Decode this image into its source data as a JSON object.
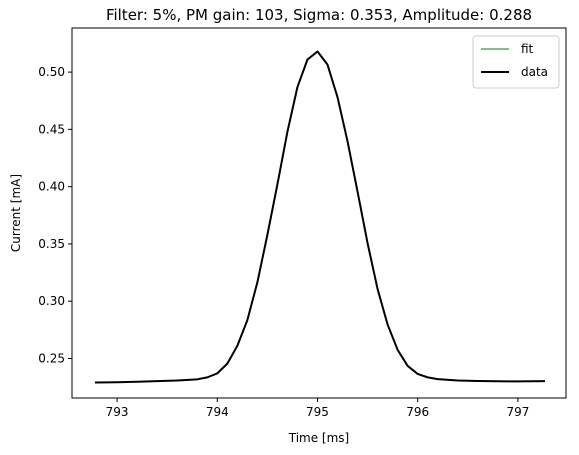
{
  "chart_data": {
    "type": "line",
    "title": "Filter: 5%, PM gain: 103, Sigma: 0.353, Amplitude: 0.288",
    "xlabel": "Time [ms]",
    "ylabel": "Current [mA]",
    "xlim": [
      792.55,
      797.48
    ],
    "ylim": [
      0.2155,
      0.5385
    ],
    "x_ticks": [
      793,
      794,
      795,
      796,
      797
    ],
    "x_tick_labels": [
      "793",
      "794",
      "795",
      "796",
      "797"
    ],
    "y_ticks": [
      0.25,
      0.3,
      0.35,
      0.4,
      0.45,
      0.5
    ],
    "y_tick_labels": [
      "0.25",
      "0.30",
      "0.35",
      "0.40",
      "0.45",
      "0.50"
    ],
    "grid": false,
    "legend_position": "top-right",
    "series": [
      {
        "name": "fit",
        "color": "#008000",
        "style": "thin",
        "x": [
          792.78,
          793.0,
          793.2,
          793.4,
          793.6,
          793.8,
          793.9,
          794.0,
          794.1,
          794.2,
          794.3,
          794.4,
          794.5,
          794.6,
          794.7,
          794.8,
          794.9,
          795.0,
          795.1,
          795.2,
          795.3,
          795.4,
          795.5,
          795.6,
          795.7,
          795.8,
          795.9,
          796.0,
          796.1,
          796.2,
          796.4,
          796.6,
          796.8,
          797.0,
          797.27
        ],
        "y": [
          0.229,
          0.2293,
          0.2297,
          0.2302,
          0.2308,
          0.2318,
          0.2335,
          0.237,
          0.2455,
          0.261,
          0.2835,
          0.3165,
          0.358,
          0.402,
          0.448,
          0.487,
          0.511,
          0.518,
          0.5065,
          0.478,
          0.4395,
          0.3955,
          0.3505,
          0.3105,
          0.2795,
          0.2575,
          0.2435,
          0.2365,
          0.2335,
          0.232,
          0.2308,
          0.2303,
          0.2301,
          0.23,
          0.2302
        ]
      },
      {
        "name": "data",
        "color": "#000000",
        "style": "thick",
        "x": [
          792.78,
          793.0,
          793.2,
          793.4,
          793.6,
          793.8,
          793.9,
          794.0,
          794.1,
          794.2,
          794.3,
          794.4,
          794.5,
          794.6,
          794.7,
          794.8,
          794.9,
          795.0,
          795.1,
          795.2,
          795.3,
          795.4,
          795.5,
          795.6,
          795.7,
          795.8,
          795.9,
          796.0,
          796.1,
          796.2,
          796.4,
          796.6,
          796.8,
          797.0,
          797.27
        ],
        "y": [
          0.229,
          0.2293,
          0.2297,
          0.2302,
          0.2308,
          0.2318,
          0.2335,
          0.237,
          0.2455,
          0.261,
          0.2835,
          0.3165,
          0.358,
          0.402,
          0.448,
          0.487,
          0.511,
          0.518,
          0.5065,
          0.478,
          0.4395,
          0.3955,
          0.3505,
          0.3105,
          0.2795,
          0.2575,
          0.2435,
          0.2365,
          0.2335,
          0.232,
          0.2308,
          0.2303,
          0.2301,
          0.23,
          0.2302
        ]
      }
    ]
  }
}
